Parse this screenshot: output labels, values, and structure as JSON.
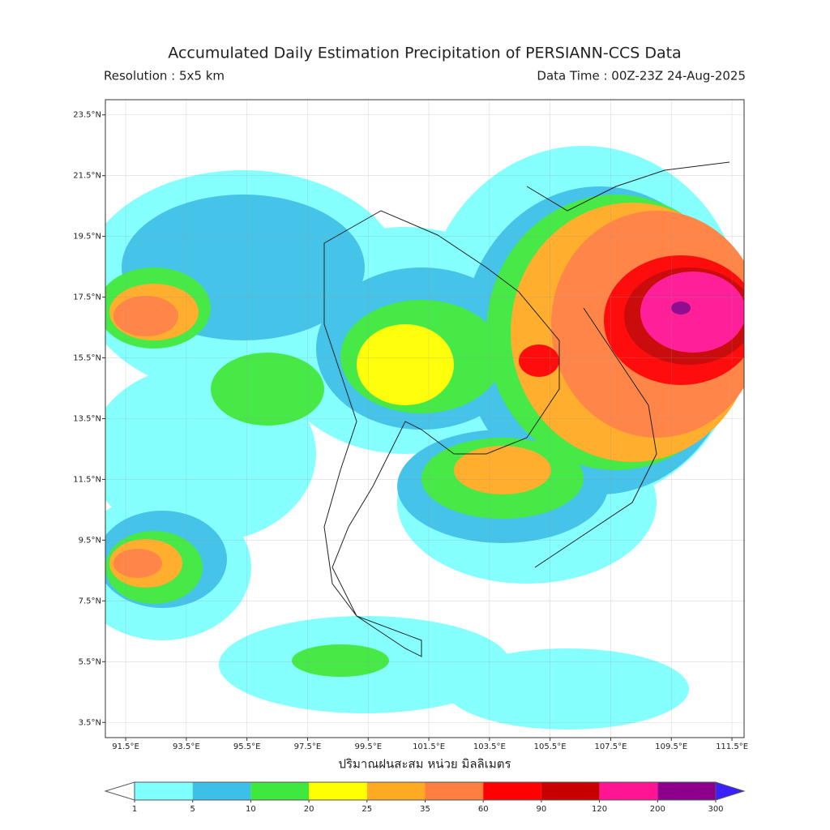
{
  "header": {
    "title": "Accumulated Daily Estimation Precipitation of PERSIANN-CCS Data",
    "resolution": "Resolution : 5x5 km",
    "data_time": "Data Time : 00Z-23Z 24-Aug-2025"
  },
  "map": {
    "xlim": [
      90.83,
      111.9
    ],
    "ylim": [
      3.0,
      24.0
    ],
    "xticks": [
      {
        "value": 91.5,
        "label": "91.5°E"
      },
      {
        "value": 93.5,
        "label": "93.5°E"
      },
      {
        "value": 95.5,
        "label": "95.5°E"
      },
      {
        "value": 97.5,
        "label": "97.5°E"
      },
      {
        "value": 99.5,
        "label": "99.5°E"
      },
      {
        "value": 101.5,
        "label": "101.5°E"
      },
      {
        "value": 103.5,
        "label": "103.5°E"
      },
      {
        "value": 105.5,
        "label": "105.5°E"
      },
      {
        "value": 107.5,
        "label": "107.5°E"
      },
      {
        "value": 109.5,
        "label": "109.5°E"
      },
      {
        "value": 111.5,
        "label": "111.5°E"
      }
    ],
    "yticks": [
      {
        "value": 23.5,
        "label": "23.5°N"
      },
      {
        "value": 21.5,
        "label": "21.5°N"
      },
      {
        "value": 19.5,
        "label": "19.5°N"
      },
      {
        "value": 17.5,
        "label": "17.5°N"
      },
      {
        "value": 15.5,
        "label": "15.5°N"
      },
      {
        "value": 13.5,
        "label": "13.5°N"
      },
      {
        "value": 11.5,
        "label": "11.5°N"
      },
      {
        "value": 9.5,
        "label": "9.5°N"
      },
      {
        "value": 7.5,
        "label": "7.5°N"
      },
      {
        "value": 5.5,
        "label": "5.5°N"
      },
      {
        "value": 3.5,
        "label": "3.5°N"
      }
    ],
    "grid": true,
    "xlabel": "ปริมาณฝนสะสม หน่วย มิลลิเมตร"
  },
  "colorbar": {
    "bounds": [
      1,
      5,
      10,
      20,
      25,
      35,
      60,
      90,
      120,
      200,
      300
    ],
    "colors": [
      "#80ffff",
      "#3cc0e8",
      "#3ee83e",
      "#ffff00",
      "#ffaa22",
      "#ff7f40",
      "#ff0000",
      "#c80000",
      "#ff1493",
      "#8b008b"
    ],
    "under_color": "#ffffff",
    "over_color": "#3a1fff"
  }
}
